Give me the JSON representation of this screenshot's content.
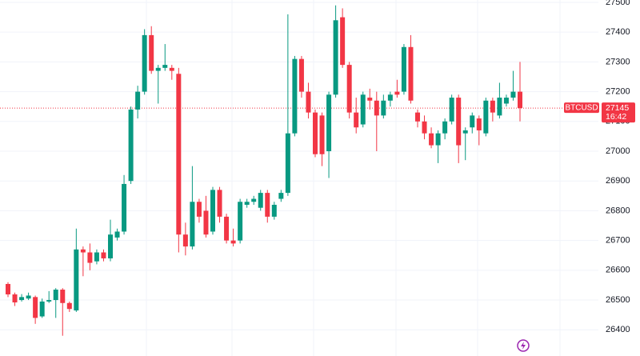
{
  "chart_data": {
    "type": "candlestick",
    "symbol": "BTCUSD",
    "last_price": 27145,
    "time_label": "16:42",
    "up_color": "#089981",
    "down_color": "#f23645",
    "ylim": [
      26312,
      27508
    ],
    "yticks": [
      26400,
      26500,
      26600,
      26700,
      26800,
      26900,
      27000,
      27100,
      27200,
      27300,
      27400,
      27500
    ],
    "grid": true,
    "open": [
      26554,
      26519,
      26500,
      26505,
      26510,
      26445,
      26495,
      26500,
      26535,
      26490,
      26465,
      26670,
      26660,
      26630,
      26660,
      26640,
      26710,
      26730,
      26900,
      27140,
      27200,
      27390,
      27270,
      27280,
      27280,
      27260,
      26720,
      26680,
      26830,
      26800,
      26730,
      26870,
      26780,
      26700,
      26700,
      26820,
      26830,
      26810,
      26860,
      26780,
      26840,
      26860,
      27060,
      27310,
      27200,
      27130,
      27120,
      27000,
      27190,
      27450,
      27290,
      27130,
      27090,
      27180,
      27170,
      27120,
      27170,
      27200,
      27200,
      27350,
      27130,
      27100,
      27060,
      27020,
      27060,
      27100,
      27180,
      27060,
      27080,
      27110,
      27060,
      27170,
      27120,
      27160,
      27180,
      27200
    ],
    "high": [
      26560,
      26525,
      26520,
      26525,
      26515,
      26505,
      26530,
      26540,
      26540,
      26495,
      26740,
      26680,
      26690,
      26670,
      26670,
      26770,
      26740,
      26920,
      27150,
      27220,
      27410,
      27420,
      27290,
      27360,
      27290,
      27280,
      26760,
      26950,
      26840,
      26850,
      26880,
      26880,
      26790,
      26740,
      26840,
      26840,
      26850,
      26870,
      26870,
      26830,
      26870,
      27460,
      27320,
      27320,
      27230,
      27140,
      27130,
      27200,
      27490,
      27480,
      27300,
      27180,
      27200,
      27210,
      27200,
      27190,
      27200,
      27240,
      27360,
      27390,
      27140,
      27120,
      27080,
      27070,
      27110,
      27190,
      27190,
      27080,
      27130,
      27120,
      27180,
      27180,
      27230,
      27190,
      27270,
      27300
    ],
    "low": [
      26510,
      26480,
      26495,
      26500,
      26420,
      26440,
      26490,
      26440,
      26380,
      26460,
      26460,
      26580,
      26600,
      26620,
      26630,
      26630,
      26700,
      26720,
      26890,
      27110,
      27190,
      27260,
      27160,
      27270,
      27240,
      26660,
      26650,
      26670,
      26760,
      26710,
      26720,
      26760,
      26690,
      26680,
      26690,
      26810,
      26820,
      26800,
      26760,
      26770,
      26830,
      26850,
      27050,
      27180,
      27110,
      26980,
      26950,
      26910,
      27180,
      27280,
      27110,
      27060,
      27080,
      27140,
      27000,
      27110,
      27150,
      27180,
      27190,
      27160,
      27080,
      27040,
      27010,
      26960,
      27040,
      27090,
      26960,
      26970,
      27060,
      27020,
      27050,
      27100,
      27110,
      27150,
      27170,
      27100
    ],
    "close": [
      26519,
      26492,
      26510,
      26515,
      26440,
      26495,
      26500,
      26535,
      26490,
      26470,
      26670,
      26660,
      26625,
      26660,
      26640,
      26720,
      26730,
      26890,
      27140,
      27200,
      27390,
      27270,
      27280,
      27290,
      27270,
      26720,
      26680,
      26830,
      26780,
      26720,
      26870,
      26780,
      26700,
      26690,
      26830,
      26830,
      26840,
      26860,
      26780,
      26820,
      26860,
      27060,
      27310,
      27200,
      27130,
      26990,
      26990,
      27190,
      27440,
      27290,
      27130,
      27080,
      27190,
      27170,
      27120,
      27170,
      27190,
      27190,
      27350,
      27170,
      27100,
      27060,
      27020,
      27060,
      27100,
      27180,
      27020,
      27070,
      27120,
      27070,
      27170,
      27130,
      27180,
      27180,
      27200,
      27145
    ]
  }
}
